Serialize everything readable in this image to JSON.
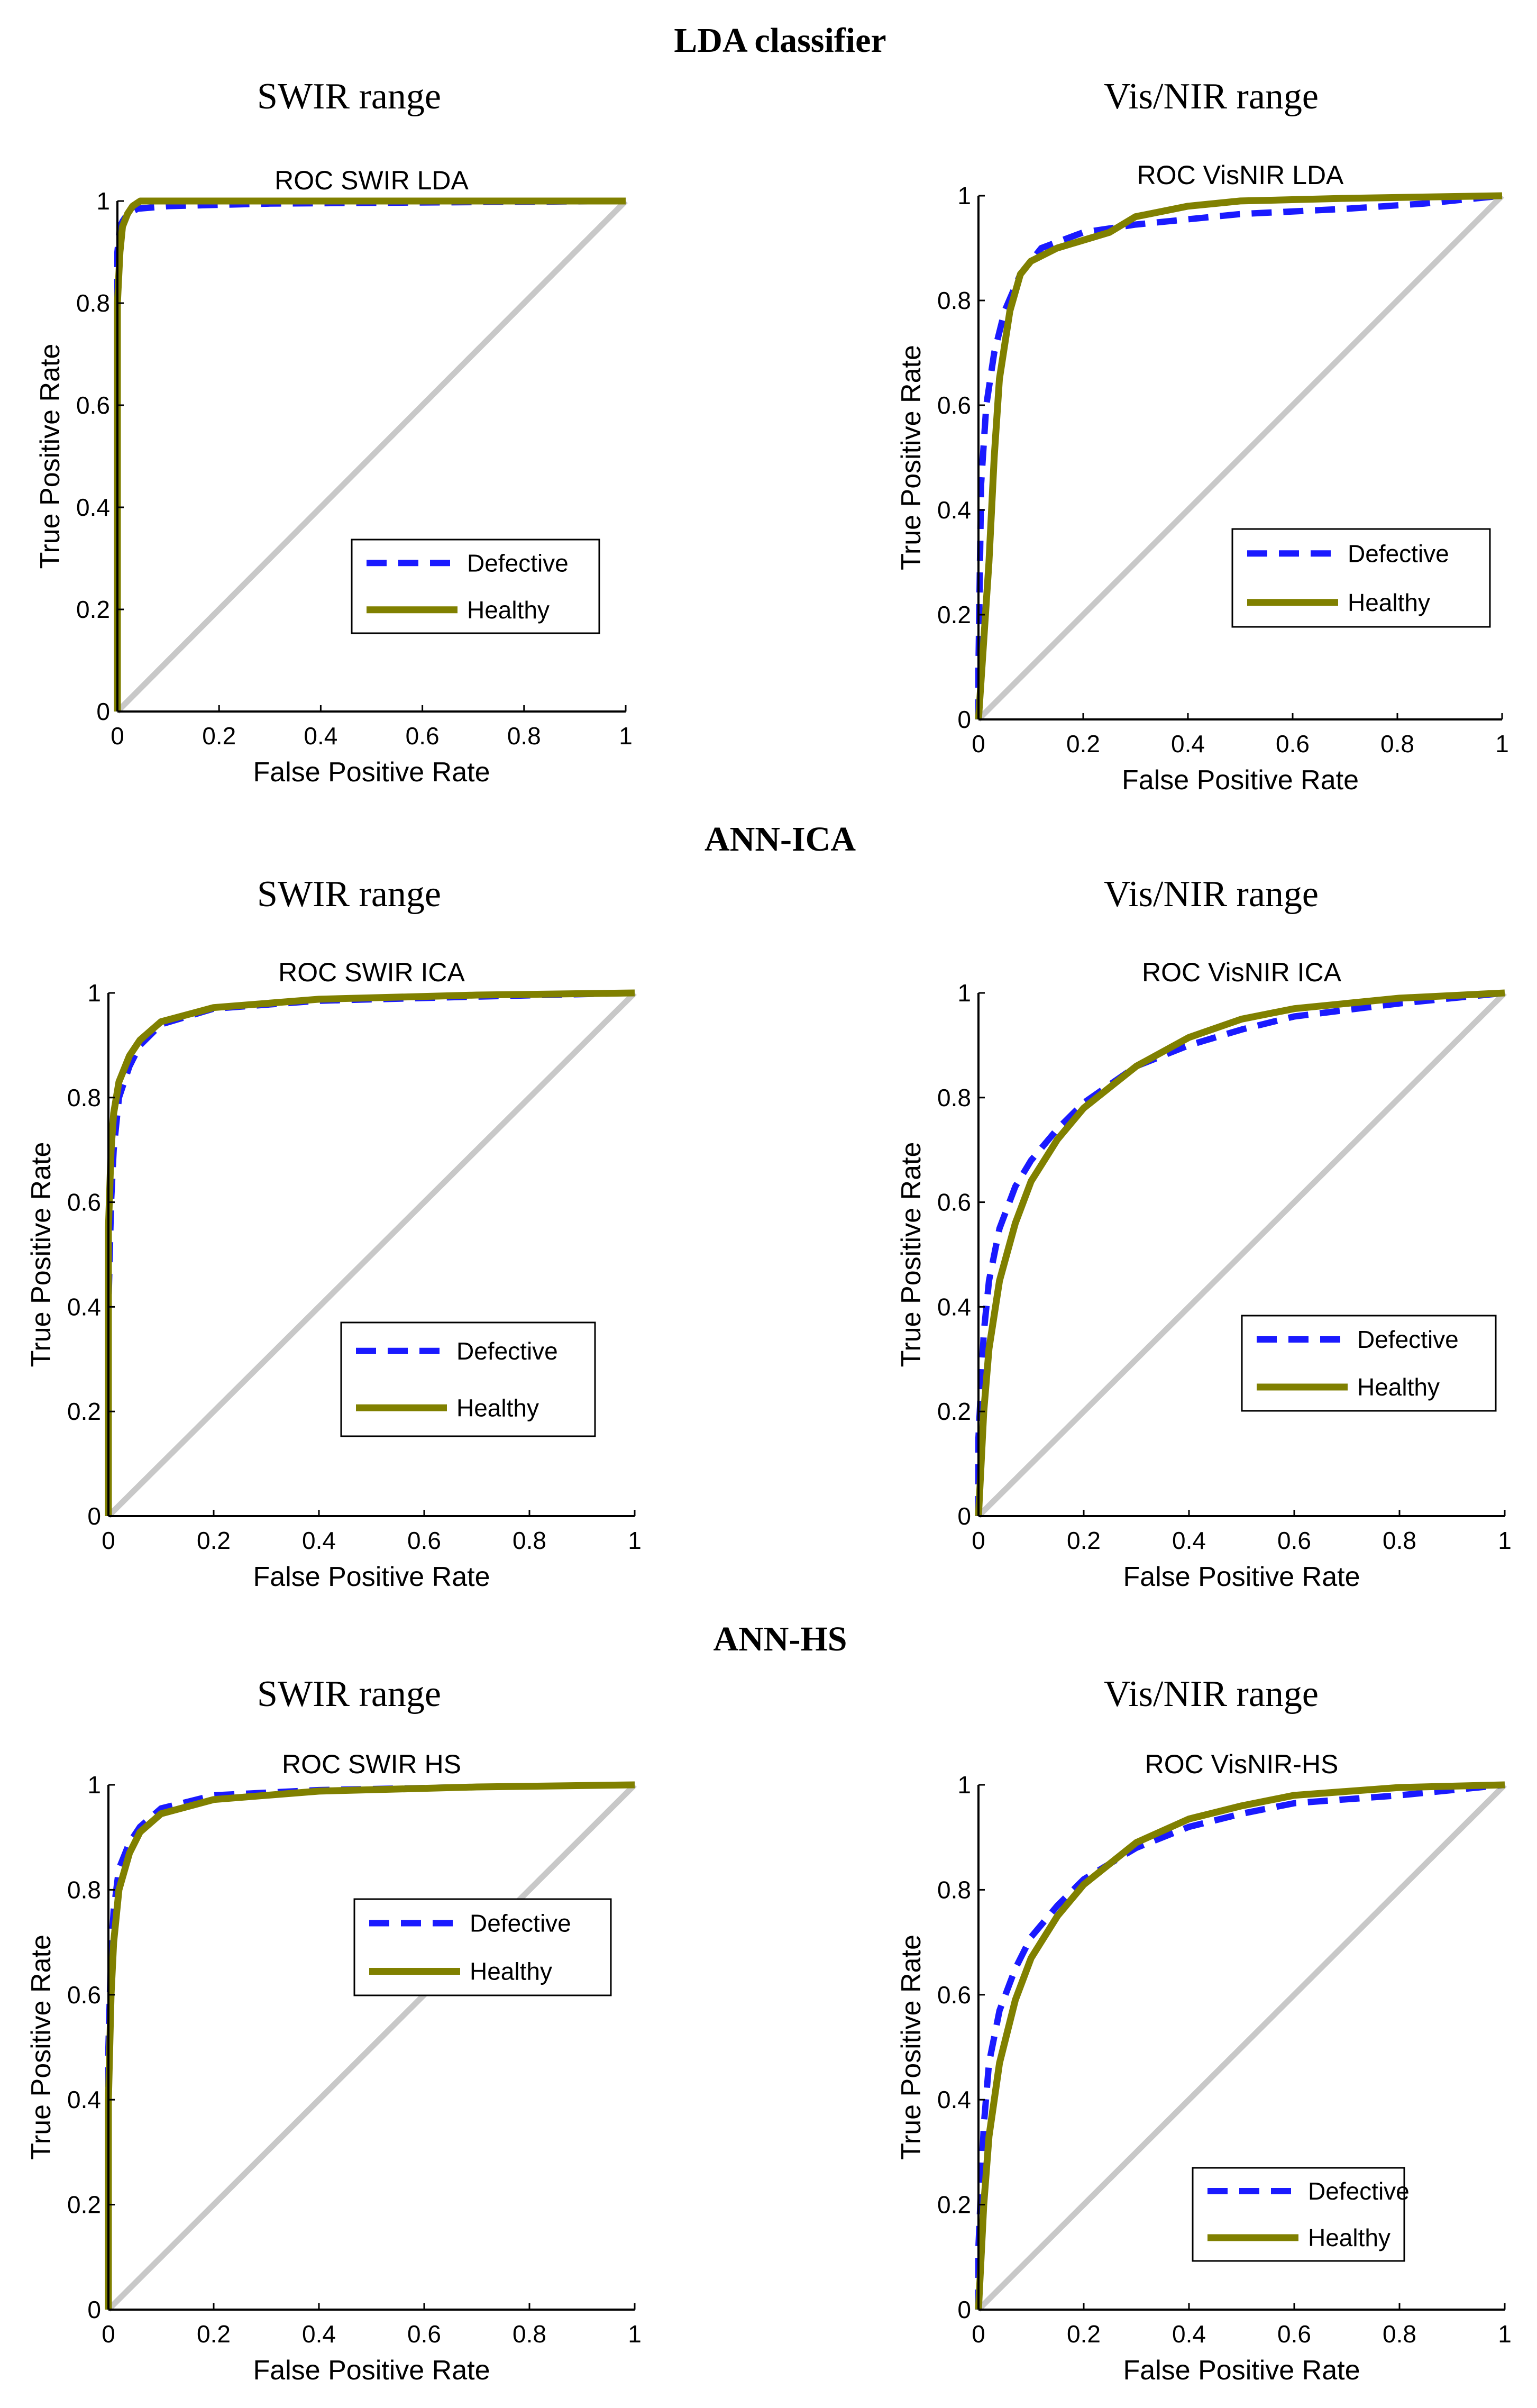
{
  "sections": [
    {
      "title": "LDA classifier"
    },
    {
      "title": "ANN-ICA"
    },
    {
      "title": "ANN-HS"
    }
  ],
  "range_labels": {
    "left": "SWIR range",
    "right": "Vis/NIR range"
  },
  "colors": {
    "defective": "#1a1aff",
    "healthy": "#808000",
    "diagonal": "#c8c8c8",
    "axis": "#000000"
  },
  "chart_data": [
    {
      "type": "line",
      "title": "ROC SWIR LDA",
      "xlabel": "False Positive Rate",
      "ylabel": "True Positive Rate",
      "xlim": [
        0,
        1
      ],
      "ylim": [
        0,
        1
      ],
      "xticks": [
        "0",
        "0.2",
        "0.4",
        "0.6",
        "0.8",
        "1"
      ],
      "yticks": [
        "0",
        "0.2",
        "0.4",
        "0.6",
        "0.8",
        "1"
      ],
      "legend": [
        "Defective",
        "Healthy"
      ],
      "series": [
        {
          "name": "Defective",
          "x": [
            0,
            0,
            0.005,
            0.01,
            0.02,
            0.04,
            0.1,
            0.3,
            1
          ],
          "y": [
            0,
            0.9,
            0.95,
            0.96,
            0.975,
            0.985,
            0.99,
            0.995,
            1
          ]
        },
        {
          "name": "Healthy",
          "x": [
            0,
            0,
            0.005,
            0.01,
            0.02,
            0.03,
            0.045,
            1
          ],
          "y": [
            0,
            0.8,
            0.9,
            0.95,
            0.975,
            0.99,
            1,
            1
          ]
        }
      ]
    },
    {
      "type": "line",
      "title": "ROC VisNIR LDA",
      "xlabel": "False Positive Rate",
      "ylabel": "True Positive Rate",
      "xlim": [
        0,
        1
      ],
      "ylim": [
        0,
        1
      ],
      "xticks": [
        "0",
        "0.2",
        "0.4",
        "0.6",
        "0.8",
        "1"
      ],
      "yticks": [
        "0",
        "0.2",
        "0.4",
        "0.6",
        "0.8",
        "1"
      ],
      "legend": [
        "Defective",
        "Healthy"
      ],
      "series": [
        {
          "name": "Defective",
          "x": [
            0,
            0,
            0.005,
            0.015,
            0.03,
            0.05,
            0.08,
            0.12,
            0.2,
            0.3,
            0.5,
            0.7,
            0.85,
            1
          ],
          "y": [
            0,
            0.1,
            0.45,
            0.6,
            0.7,
            0.78,
            0.85,
            0.9,
            0.93,
            0.945,
            0.965,
            0.975,
            0.985,
            1
          ]
        },
        {
          "name": "Healthy",
          "x": [
            0,
            0.01,
            0.02,
            0.03,
            0.04,
            0.06,
            0.08,
            0.1,
            0.15,
            0.25,
            0.3,
            0.4,
            0.5,
            0.7,
            1
          ],
          "y": [
            0,
            0.15,
            0.3,
            0.5,
            0.65,
            0.78,
            0.85,
            0.875,
            0.9,
            0.93,
            0.96,
            0.98,
            0.99,
            0.995,
            1
          ]
        }
      ]
    },
    {
      "type": "line",
      "title": "ROC SWIR ICA",
      "xlabel": "False Positive Rate",
      "ylabel": "True Positive Rate",
      "xlim": [
        0,
        1
      ],
      "ylim": [
        0,
        1
      ],
      "xticks": [
        "0",
        "0.2",
        "0.4",
        "0.6",
        "0.8",
        "1"
      ],
      "yticks": [
        "0",
        "0.2",
        "0.4",
        "0.6",
        "0.8",
        "1"
      ],
      "legend": [
        "Defective",
        "Healthy"
      ],
      "series": [
        {
          "name": "Defective",
          "x": [
            0,
            0,
            0.005,
            0.01,
            0.02,
            0.04,
            0.06,
            0.1,
            0.2,
            0.4,
            0.7,
            1
          ],
          "y": [
            0,
            0.4,
            0.6,
            0.7,
            0.8,
            0.86,
            0.9,
            0.94,
            0.97,
            0.985,
            0.993,
            1
          ]
        },
        {
          "name": "Healthy",
          "x": [
            0,
            0,
            0.005,
            0.01,
            0.02,
            0.04,
            0.06,
            0.1,
            0.2,
            0.4,
            0.7,
            1
          ],
          "y": [
            0,
            0.55,
            0.7,
            0.77,
            0.83,
            0.88,
            0.91,
            0.945,
            0.972,
            0.988,
            0.996,
            1
          ]
        }
      ]
    },
    {
      "type": "line",
      "title": "ROC VisNIR ICA",
      "xlabel": "False Positive Rate",
      "ylabel": "True Positive Rate",
      "xlim": [
        0,
        1
      ],
      "ylim": [
        0,
        1
      ],
      "xticks": [
        "0",
        "0.2",
        "0.4",
        "0.6",
        "0.8",
        "1"
      ],
      "yticks": [
        "0",
        "0.2",
        "0.4",
        "0.6",
        "0.8",
        "1"
      ],
      "legend": [
        "Defective",
        "Healthy"
      ],
      "series": [
        {
          "name": "Defective",
          "x": [
            0,
            0,
            0.01,
            0.02,
            0.04,
            0.07,
            0.1,
            0.15,
            0.2,
            0.3,
            0.4,
            0.5,
            0.6,
            0.8,
            1
          ],
          "y": [
            0,
            0.15,
            0.35,
            0.45,
            0.55,
            0.63,
            0.68,
            0.74,
            0.79,
            0.86,
            0.9,
            0.93,
            0.955,
            0.98,
            1
          ]
        },
        {
          "name": "Healthy",
          "x": [
            0,
            0.005,
            0.01,
            0.02,
            0.04,
            0.07,
            0.1,
            0.15,
            0.2,
            0.3,
            0.4,
            0.5,
            0.6,
            0.8,
            1
          ],
          "y": [
            0,
            0.1,
            0.2,
            0.32,
            0.45,
            0.56,
            0.64,
            0.72,
            0.78,
            0.86,
            0.915,
            0.95,
            0.97,
            0.99,
            1
          ]
        }
      ]
    },
    {
      "type": "line",
      "title": "ROC SWIR HS",
      "xlabel": "False Positive Rate",
      "ylabel": "True Positive Rate",
      "xlim": [
        0,
        1
      ],
      "ylim": [
        0,
        1
      ],
      "xticks": [
        "0",
        "0.2",
        "0.4",
        "0.6",
        "0.8",
        "1"
      ],
      "yticks": [
        "0",
        "0.2",
        "0.4",
        "0.6",
        "0.8",
        "1"
      ],
      "legend": [
        "Defective",
        "Healthy"
      ],
      "series": [
        {
          "name": "Defective",
          "x": [
            0,
            0,
            0.005,
            0.01,
            0.02,
            0.04,
            0.06,
            0.1,
            0.2,
            0.4,
            0.7,
            1
          ],
          "y": [
            0,
            0.5,
            0.68,
            0.76,
            0.84,
            0.89,
            0.92,
            0.955,
            0.98,
            0.99,
            0.996,
            1
          ]
        },
        {
          "name": "Healthy",
          "x": [
            0,
            0,
            0.005,
            0.01,
            0.02,
            0.04,
            0.06,
            0.1,
            0.2,
            0.4,
            0.7,
            1
          ],
          "y": [
            0,
            0.4,
            0.6,
            0.7,
            0.8,
            0.87,
            0.91,
            0.945,
            0.972,
            0.988,
            0.996,
            1
          ]
        }
      ]
    },
    {
      "type": "line",
      "title": "ROC VisNIR-HS",
      "xlabel": "False Positive Rate",
      "ylabel": "True Positive Rate",
      "xlim": [
        0,
        1
      ],
      "ylim": [
        0,
        1
      ],
      "xticks": [
        "0",
        "0.2",
        "0.4",
        "0.6",
        "0.8",
        "1"
      ],
      "yticks": [
        "0",
        "0.2",
        "0.4",
        "0.6",
        "0.8",
        "1"
      ],
      "legend": [
        "Defective",
        "Healthy"
      ],
      "series": [
        {
          "name": "Defective",
          "x": [
            0,
            0,
            0.01,
            0.02,
            0.04,
            0.07,
            0.1,
            0.15,
            0.2,
            0.3,
            0.4,
            0.5,
            0.6,
            0.8,
            1
          ],
          "y": [
            0,
            0.12,
            0.35,
            0.47,
            0.57,
            0.65,
            0.71,
            0.77,
            0.82,
            0.88,
            0.92,
            0.945,
            0.965,
            0.98,
            1
          ]
        },
        {
          "name": "Healthy",
          "x": [
            0,
            0.005,
            0.01,
            0.02,
            0.04,
            0.07,
            0.1,
            0.15,
            0.2,
            0.3,
            0.4,
            0.5,
            0.6,
            0.8,
            1
          ],
          "y": [
            0,
            0.1,
            0.2,
            0.33,
            0.47,
            0.59,
            0.67,
            0.75,
            0.81,
            0.89,
            0.935,
            0.96,
            0.98,
            0.995,
            1
          ]
        }
      ]
    }
  ]
}
